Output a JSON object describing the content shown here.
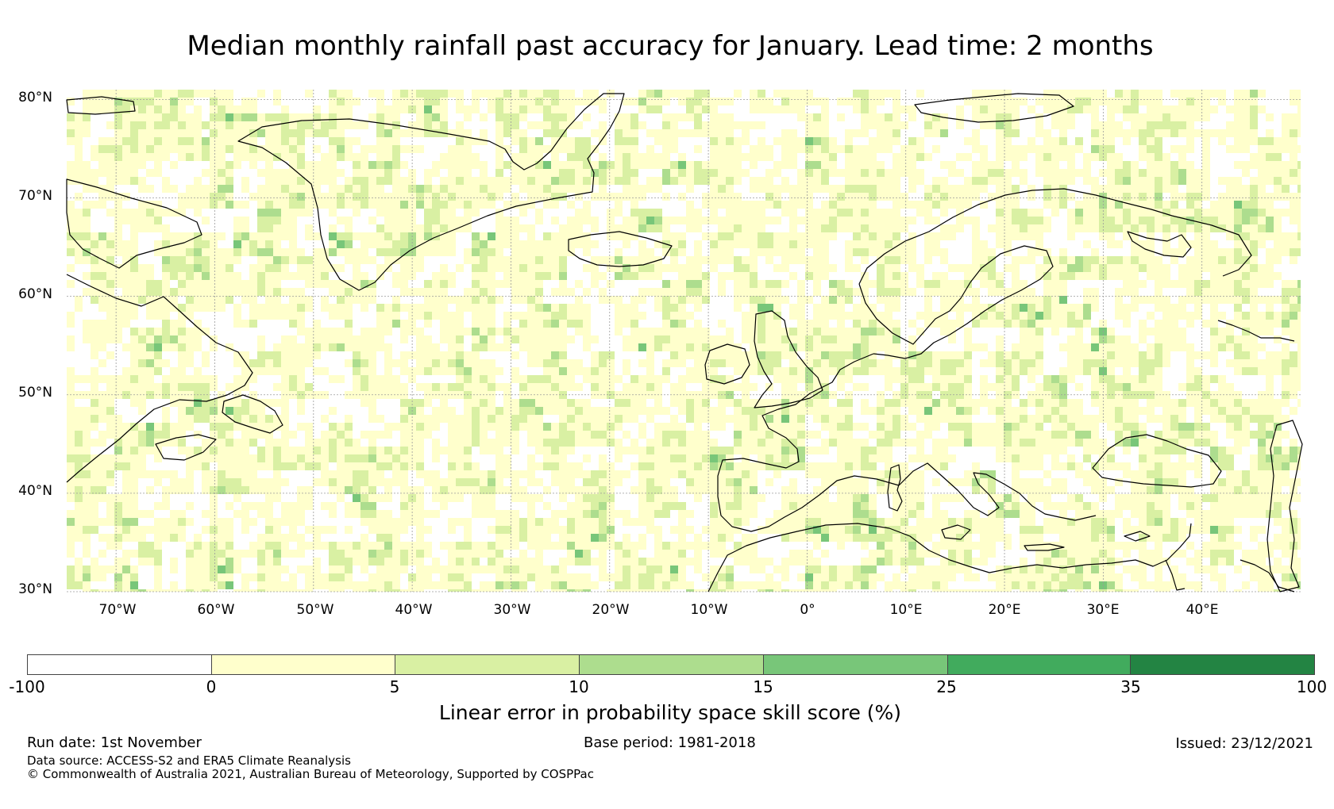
{
  "title": "Median monthly rainfall past accuracy for January. Lead time: 2 months",
  "map": {
    "lat_labels": [
      "80°N",
      "70°N",
      "60°N",
      "50°N",
      "40°N",
      "30°N"
    ],
    "lon_labels": [
      "70°W",
      "60°W",
      "50°W",
      "40°W",
      "30°W",
      "20°W",
      "10°W",
      "0°",
      "10°E",
      "20°E",
      "30°E",
      "40°E"
    ],
    "extent": {
      "lon_min": -75,
      "lon_max": 50,
      "lat_min": 30,
      "lat_max": 81
    },
    "coastline_color": "#000000",
    "gridline_color": "#9a9a9a"
  },
  "colorbar": {
    "ticks": [
      "-100",
      "0",
      "5",
      "10",
      "15",
      "25",
      "35",
      "100"
    ],
    "colors": [
      "#ffffff",
      "#ffffcc",
      "#d9f0a3",
      "#addd8e",
      "#78c679",
      "#41ab5d",
      "#238443"
    ],
    "label": "Linear error in probability space skill score (%)"
  },
  "footer": {
    "run_date": "Run date: 1st November",
    "base_period": "Base period: 1981-2018",
    "issued": "Issued: 23/12/2021",
    "data_source": "Data source: ACCESS-S2 and ERA5 Climate Reanalysis",
    "copyright": "© Commonwealth of Australia 2021, Australian Bureau of Meteorology, Supported by COSPPac"
  }
}
